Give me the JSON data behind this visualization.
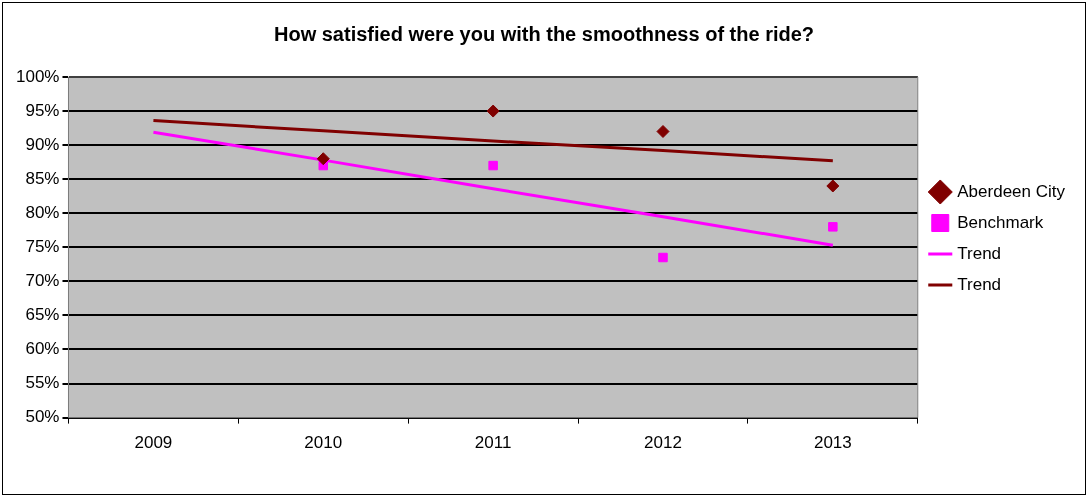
{
  "chart_data": {
    "type": "scatter",
    "title": "How satisfied were you with the smoothness of the ride?",
    "categories": [
      "2009",
      "2010",
      "2011",
      "2012",
      "2013"
    ],
    "series": [
      {
        "name": "Aberdeen City",
        "marker": "diamond",
        "color": "#800000",
        "values": [
          null,
          88,
          95,
          92,
          84
        ]
      },
      {
        "name": "Benchmark",
        "marker": "square",
        "color": "#ff00ff",
        "values": [
          null,
          87,
          87,
          73.5,
          78
        ]
      },
      {
        "name": "Trend",
        "type": "line",
        "marker": "none",
        "color": "#ff00ff",
        "values": [
          91.9,
          87.8,
          83.6,
          79.5,
          75.3
        ]
      },
      {
        "name": "Trend",
        "type": "line",
        "marker": "none",
        "color": "#800000",
        "values": [
          93.6,
          92.1,
          90.6,
          89.2,
          87.7
        ]
      }
    ],
    "ylim": [
      50,
      100
    ],
    "yticks": [
      {
        "value": 50,
        "label": "50%"
      },
      {
        "value": 55,
        "label": "55%"
      },
      {
        "value": 60,
        "label": "60%"
      },
      {
        "value": 65,
        "label": "65%"
      },
      {
        "value": 70,
        "label": "70%"
      },
      {
        "value": 75,
        "label": "75%"
      },
      {
        "value": 80,
        "label": "80%"
      },
      {
        "value": 85,
        "label": "85%"
      },
      {
        "value": 90,
        "label": "90%"
      },
      {
        "value": 95,
        "label": "95%"
      },
      {
        "value": 100,
        "label": "100%"
      }
    ],
    "grid": "y",
    "legend": "right"
  }
}
